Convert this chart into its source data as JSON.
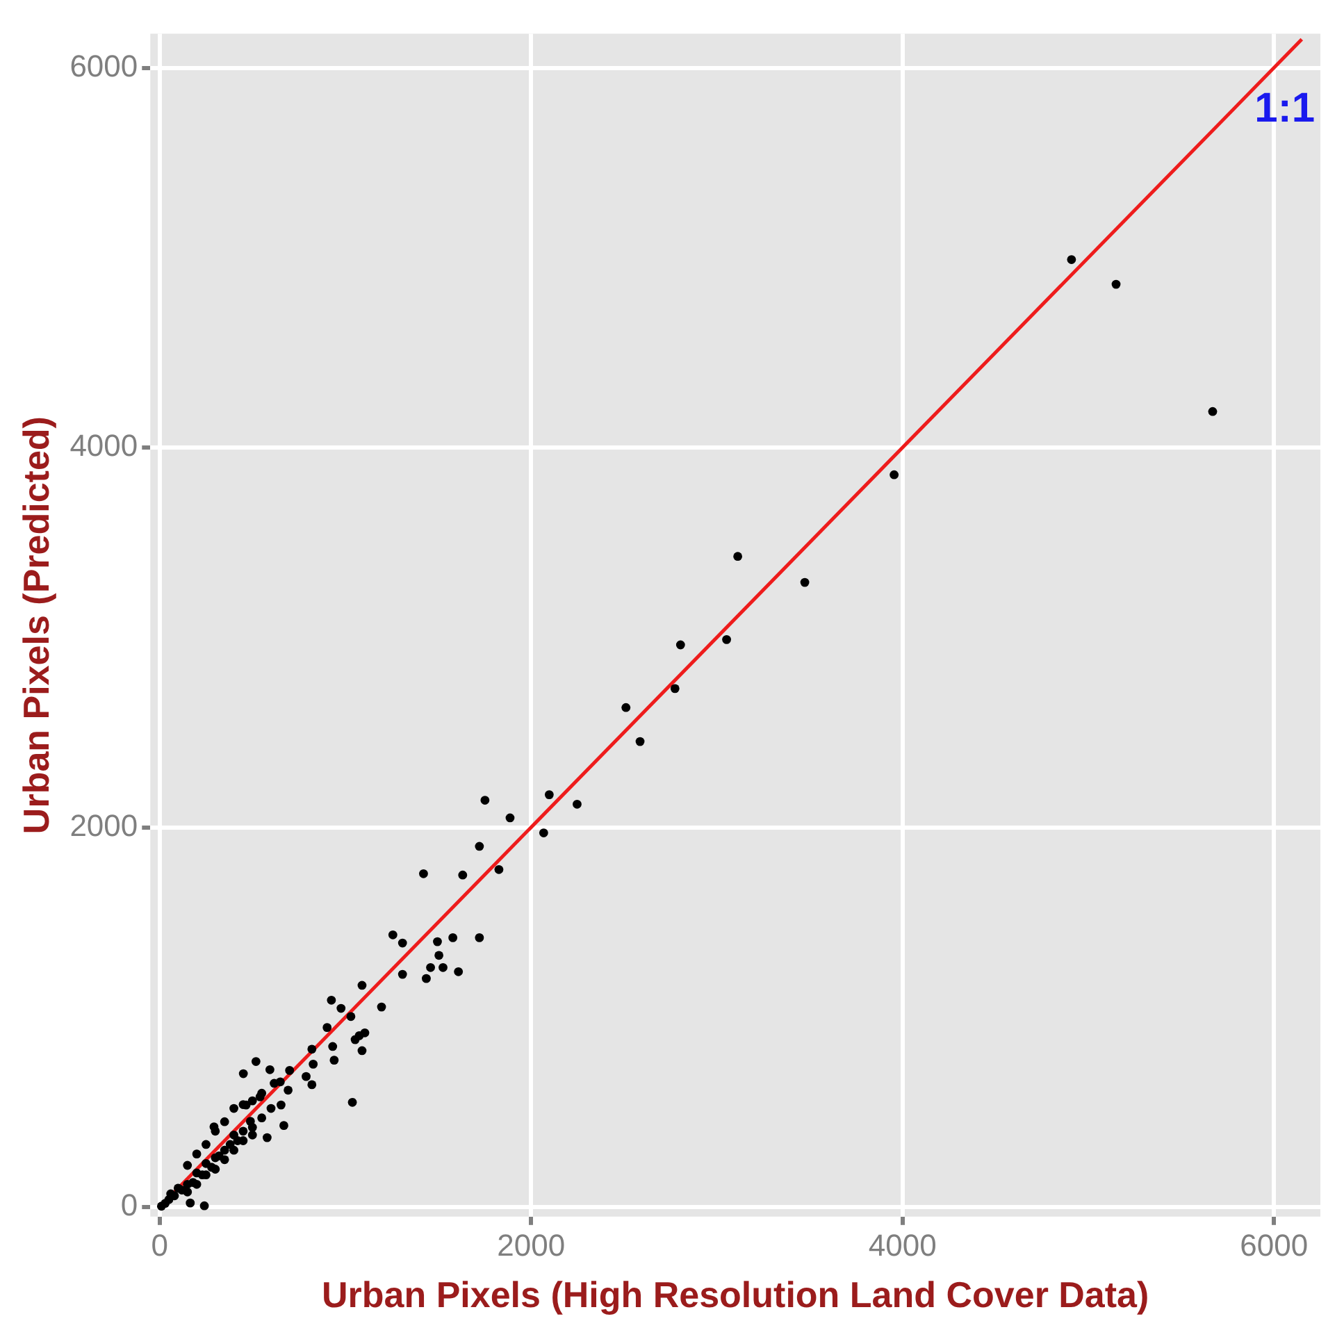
{
  "chart_data": {
    "type": "scatter",
    "xlabel": "Urban Pixels (High Resolution Land Cover Data)",
    "ylabel": "Urban Pixels (Predicted)",
    "xlim": [
      -50,
      6250
    ],
    "ylim": [
      -50,
      6180
    ],
    "xticks": [
      0,
      2000,
      4000,
      6000
    ],
    "yticks": [
      0,
      2000,
      4000,
      6000
    ],
    "grid": true,
    "marker": "circle",
    "annotations": [
      "1:1"
    ],
    "series": [
      {
        "color": "#000000",
        "x": [
          4910,
          5150,
          5670,
          3955,
          3474,
          3113,
          3053,
          2805,
          2775,
          2511,
          2587,
          2248,
          2098,
          2068,
          1887,
          1752,
          1722,
          1827,
          1632,
          1421,
          1722,
          1579,
          1496,
          1504,
          1459,
          1526,
          1609,
          1436,
          1256,
          1308,
          1308,
          1090,
          925,
          977,
          1195,
          1030,
          902,
          1075,
          1105,
          1053,
          1090,
          932,
          820,
          940,
          827,
          519,
          451,
          594,
          789,
          820,
          1038,
          617,
          541,
          692,
          654,
          466,
          669,
          579,
          293,
          489,
          241,
          165,
          10,
          30,
          50,
          60,
          80,
          100,
          120,
          150,
          180,
          200,
          230,
          250,
          280,
          300,
          320,
          350,
          380,
          400,
          420,
          450,
          500,
          300,
          350,
          400,
          250,
          200,
          150,
          450,
          500,
          550,
          600,
          150,
          200,
          250,
          300,
          350,
          400,
          450,
          500,
          550,
          650,
          700
        ],
        "values": [
          4990,
          4860,
          4190,
          3857,
          3290,
          3427,
          2989,
          2961,
          2731,
          2631,
          2452,
          2122,
          2172,
          1971,
          2050,
          2143,
          1900,
          1778,
          1749,
          1756,
          1419,
          1419,
          1398,
          1326,
          1262,
          1262,
          1240,
          1204,
          1434,
          1391,
          1226,
          1168,
          1090,
          1047,
          1054,
          1004,
          946,
          903,
          918,
          882,
          824,
          846,
          832,
          774,
          753,
          767,
          703,
          724,
          688,
          645,
          552,
          652,
          581,
          616,
          538,
          538,
          430,
          366,
          423,
          452,
          7,
          22,
          5,
          20,
          40,
          70,
          60,
          100,
          90,
          120,
          130,
          180,
          170,
          230,
          210,
          260,
          270,
          300,
          330,
          380,
          350,
          400,
          420,
          200,
          250,
          300,
          170,
          120,
          80,
          350,
          380,
          470,
          520,
          220,
          280,
          330,
          400,
          450,
          520,
          540,
          560,
          600,
          660,
          720
        ]
      },
      {
        "type": "line",
        "color": "#ee1c1c",
        "marker": "none",
        "x": [
          0,
          6150
        ],
        "values": [
          0,
          6150
        ]
      }
    ]
  }
}
